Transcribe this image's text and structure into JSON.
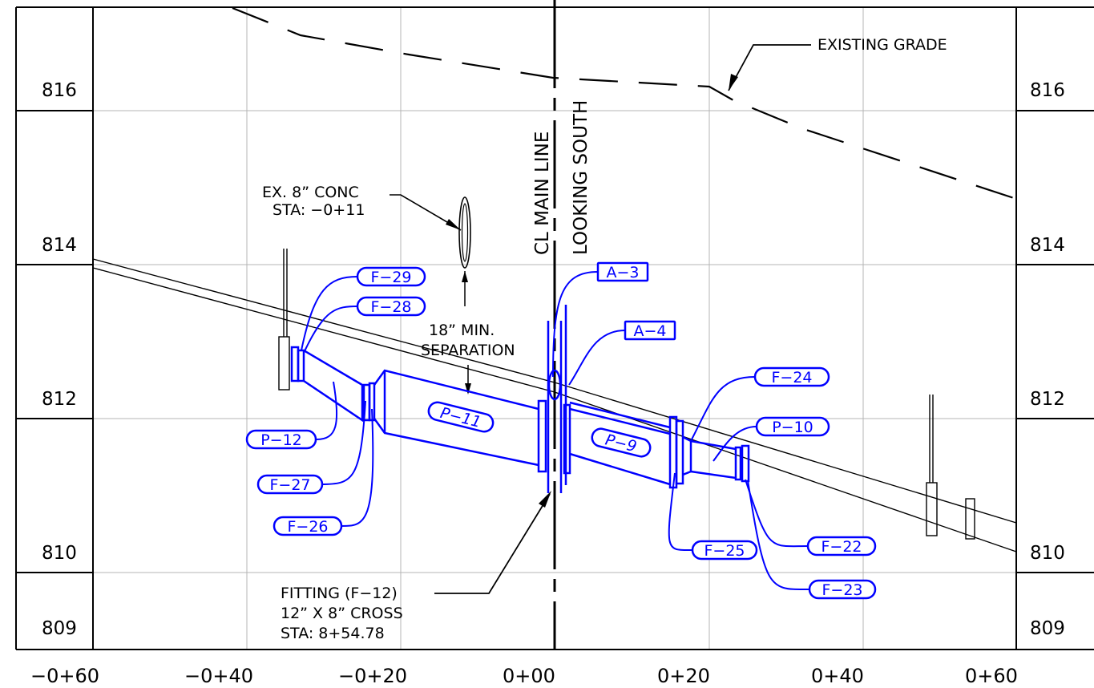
{
  "elevation_labels": {
    "left": [
      "816",
      "814",
      "812",
      "810",
      "809"
    ],
    "right": [
      "816",
      "814",
      "812",
      "810",
      "809"
    ]
  },
  "station_labels": [
    "−0+60",
    "−0+40",
    "−0+20",
    "0+00",
    "0+20",
    "0+40",
    "0+60"
  ],
  "notes": {
    "existing_grade": "EXISTING GRADE",
    "ex_conc_line1": "EX. 8” CONC",
    "ex_conc_line2": "STA: −0+11",
    "separation_line1": "18” MIN.",
    "separation_line2": "SEPARATION",
    "fitting_line1": "FITTING (F−12)",
    "fitting_line2": "12” X 8” CROSS",
    "fitting_line3": "STA: 8+54.78",
    "cl_main_line": "CL MAIN LINE",
    "looking_south": "LOOKING SOUTH"
  },
  "tags": {
    "f29": "F−29",
    "f28": "F−28",
    "a3": "A−3",
    "a4": "A−4",
    "p11": "P−11",
    "p12": "P−12",
    "f27": "F−27",
    "f26": "F−26",
    "p9": "P−9",
    "f24": "F−24",
    "p10": "P−10",
    "f25": "F−25",
    "f22": "F−22",
    "f23": "F−23"
  },
  "colors": {
    "annotation": "#0000ff",
    "linework": "#000000",
    "grid": "#b4b4b4"
  }
}
